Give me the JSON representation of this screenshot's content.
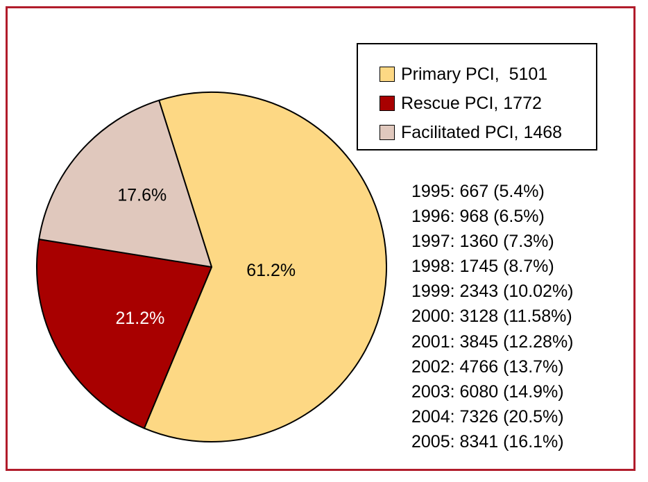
{
  "chart_data": {
    "type": "pie",
    "slices": [
      {
        "name": "Primary PCI",
        "value": 5101,
        "percent_label": "61.2%",
        "color": "#fdd884",
        "label_color": "#000000"
      },
      {
        "name": "Rescue PCI",
        "value": 1772,
        "percent_label": "21.2%",
        "color": "#a80000",
        "label_color": "#ffffff"
      },
      {
        "name": "Facilitated PCI",
        "value": 1468,
        "percent_label": "17.6%",
        "color": "#e0c8bd",
        "label_color": "#000000"
      }
    ],
    "legend": {
      "placement": "top-right",
      "entries": [
        "Primary PCI,  5101",
        "Rescue PCI, 1772",
        "Facilitated PCI, 1468"
      ]
    },
    "annotations": [
      "1995: 667 (5.4%)",
      "1996: 968 (6.5%)",
      "1997: 1360 (7.3%)",
      "1998: 1745 (8.7%)",
      "1999: 2343 (10.02%)",
      "2000: 3128 (11.58%)",
      "2001: 3845 (12.28%)",
      "2002: 4766 (13.7%)",
      "2003: 6080 (14.9%)",
      "2004: 7326 (20.5%)",
      "2005: 8341 (16.1%)"
    ]
  },
  "colors": {
    "frame_border": "#b11c2b",
    "slice_outline": "#000000"
  }
}
